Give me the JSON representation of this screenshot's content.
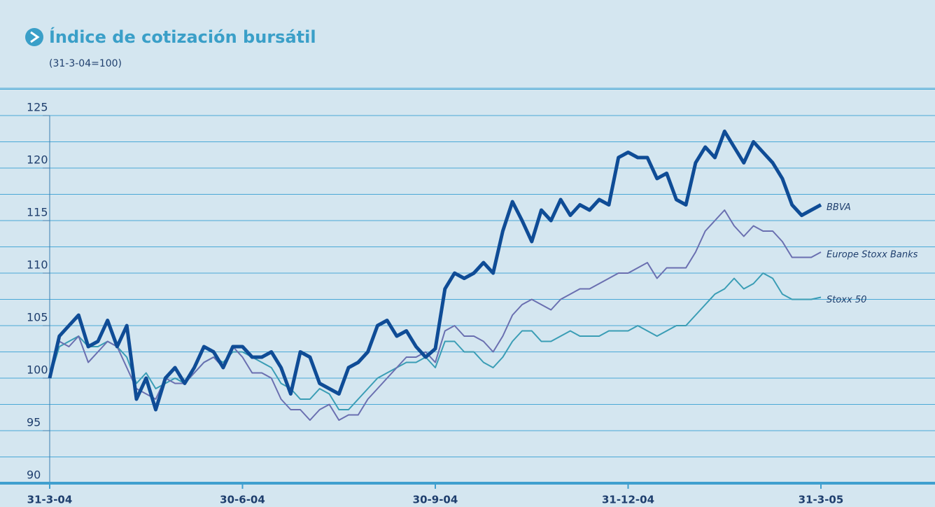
{
  "chart_data": {
    "type": "line",
    "title": "Índice de cotización bursátil",
    "subtitle": "(31-3-04=100)",
    "categories": [
      "31-3-04",
      null,
      null,
      null,
      null,
      null,
      null,
      null,
      null,
      null,
      null,
      null,
      null,
      null,
      null,
      null,
      null,
      null,
      null,
      null,
      "30-6-04",
      null,
      null,
      null,
      null,
      null,
      null,
      null,
      null,
      null,
      null,
      null,
      null,
      null,
      null,
      null,
      null,
      null,
      null,
      null,
      "30-9-04",
      null,
      null,
      null,
      null,
      null,
      null,
      null,
      null,
      null,
      null,
      null,
      null,
      null,
      null,
      null,
      null,
      null,
      null,
      null,
      "31-12-04",
      null,
      null,
      null,
      null,
      null,
      null,
      null,
      null,
      null,
      null,
      null,
      null,
      null,
      null,
      null,
      null,
      null,
      null,
      null,
      "31-3-05"
    ],
    "series": [
      {
        "name": "BBVA",
        "color": "#0f4c96",
        "values": [
          100,
          104,
          105,
          106,
          103,
          103.5,
          105.5,
          103,
          105,
          98,
          100,
          97,
          100,
          101,
          99.5,
          101,
          103,
          102.5,
          101,
          103,
          103,
          102,
          102,
          102.5,
          101,
          98.5,
          102.5,
          102,
          99.5,
          99,
          98.5,
          101,
          101.5,
          102.5,
          105,
          105.5,
          104,
          104.5,
          103,
          102,
          102.8,
          108.5,
          110,
          109.5,
          110,
          111,
          110,
          114,
          116.8,
          115,
          113,
          116,
          115,
          117,
          115.5,
          116.5,
          116,
          117,
          116.5,
          121,
          121.5,
          121,
          121,
          119,
          119.5,
          117,
          116.5,
          120.5,
          122,
          121,
          123.5,
          122,
          120.5,
          122.5,
          121.5,
          120.5,
          119,
          116.5,
          115.5,
          116,
          116.5
        ]
      },
      {
        "name": "Europe Stoxx Banks",
        "color": "#6a6fb0",
        "values": [
          100,
          103.5,
          103,
          104,
          101.5,
          102.5,
          103.5,
          103,
          101,
          99,
          98.5,
          98,
          100,
          99.5,
          99.5,
          100.5,
          101.5,
          102,
          101,
          103,
          102,
          100.5,
          100.5,
          100,
          98,
          97,
          97,
          96,
          97,
          97.5,
          96,
          96.5,
          96.5,
          98,
          99,
          100,
          101,
          102,
          102,
          102.5,
          101.5,
          104.5,
          105,
          104,
          104,
          103.5,
          102.5,
          104,
          106,
          107,
          107.5,
          107,
          106.5,
          107.5,
          108,
          108.5,
          108.5,
          109,
          109.5,
          110,
          110,
          110.5,
          111,
          109.5,
          110.5,
          110.5,
          110.5,
          112,
          114,
          115,
          116,
          114.5,
          113.5,
          114.5,
          114,
          114,
          113,
          111.5,
          111.5,
          111.5,
          112
        ]
      },
      {
        "name": "Stoxx 50",
        "color": "#3a9db5",
        "values": [
          100,
          103,
          103.5,
          104,
          103,
          103,
          103.5,
          103,
          102,
          99.5,
          100.5,
          99,
          99.5,
          100,
          99.5,
          100.5,
          101.5,
          102,
          101.5,
          102.5,
          102.5,
          102,
          101.5,
          101,
          99.5,
          99,
          98,
          98,
          99,
          98.5,
          97,
          97,
          98,
          99,
          100,
          100.5,
          101,
          101.5,
          101.5,
          102,
          101,
          103.5,
          103.5,
          102.5,
          102.5,
          101.5,
          101,
          102,
          103.5,
          104.5,
          104.5,
          103.5,
          103.5,
          104,
          104.5,
          104,
          104,
          104,
          104.5,
          104.5,
          104.5,
          105,
          104.5,
          104,
          104.5,
          105,
          105,
          106,
          107,
          108,
          108.5,
          109.5,
          108.5,
          109,
          110,
          109.5,
          108,
          107.5,
          107.5,
          107.5,
          107.7
        ]
      }
    ],
    "ylim": [
      90,
      125
    ],
    "yticks": [
      90,
      95,
      100,
      105,
      110,
      115,
      120,
      125
    ],
    "grid": true
  }
}
